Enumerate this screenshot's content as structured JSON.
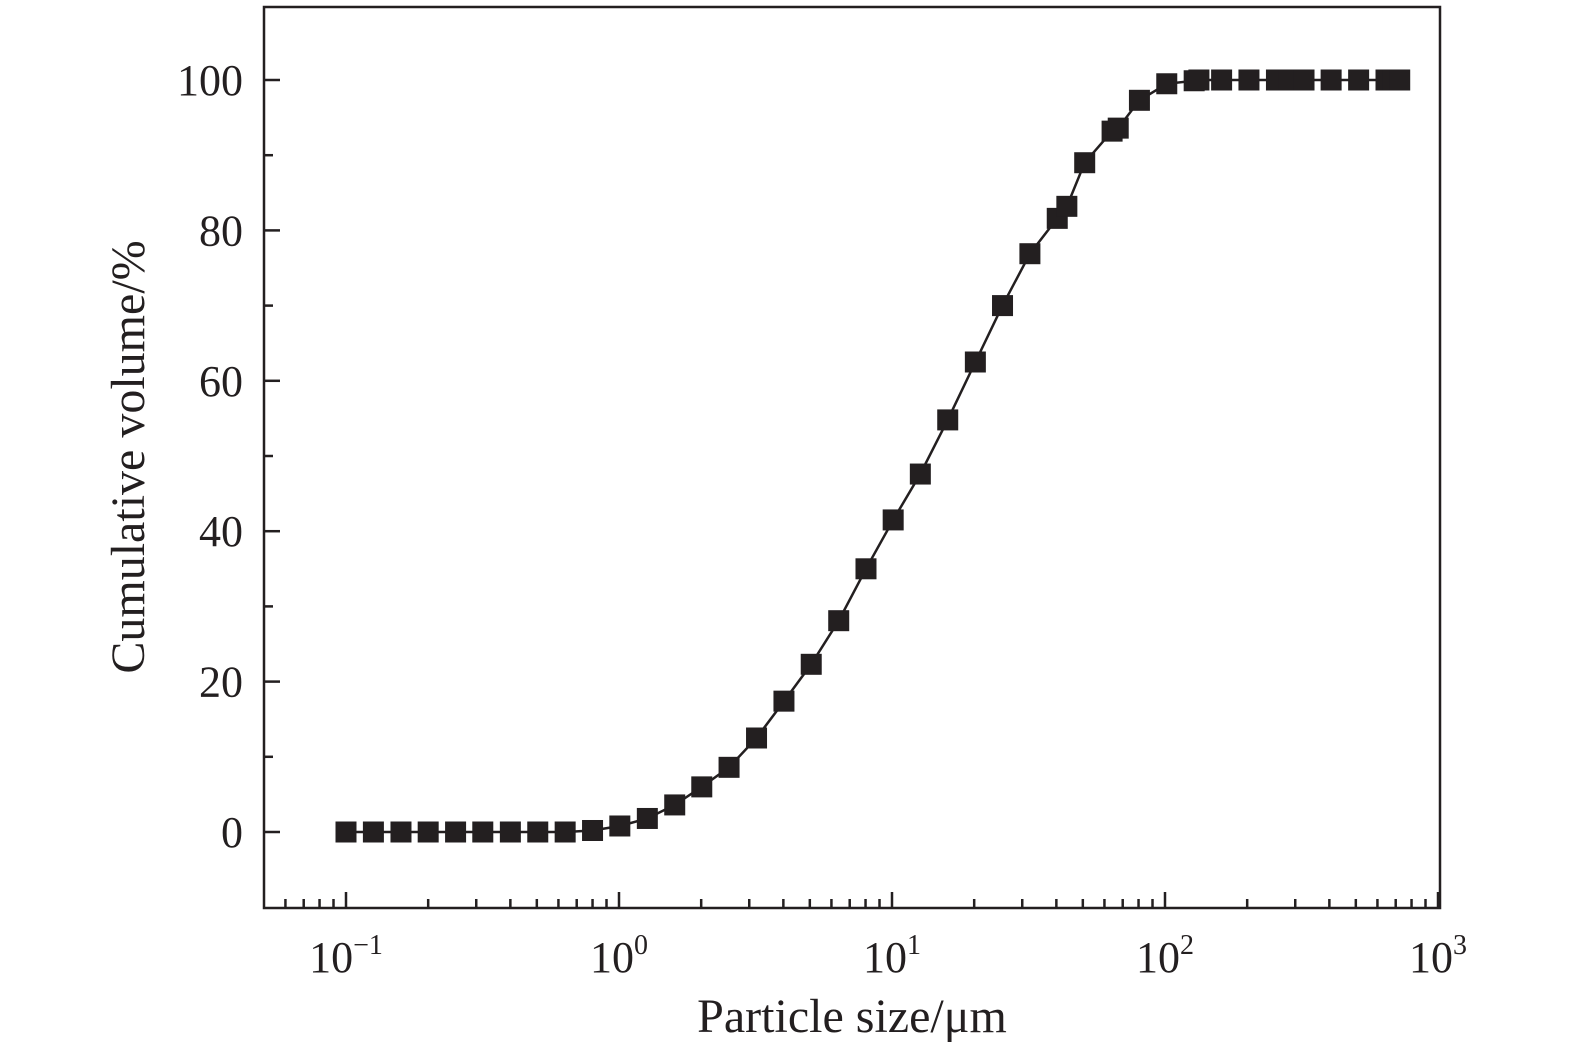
{
  "chart_data": {
    "type": "scatter",
    "title": "",
    "xlabel": "Particle size/μm",
    "ylabel": "Cumulative volume/%",
    "x_scale": "log",
    "xlim": [
      0.05,
      1000
    ],
    "ylim": [
      -10,
      110
    ],
    "x_ticks": [
      {
        "base": "10",
        "exp": "−1",
        "value": 0.1
      },
      {
        "base": "10",
        "exp": "0",
        "value": 1
      },
      {
        "base": "10",
        "exp": "1",
        "value": 10
      },
      {
        "base": "10",
        "exp": "2",
        "value": 100
      },
      {
        "base": "10",
        "exp": "3",
        "value": 1000
      }
    ],
    "y_ticks": [
      {
        "label": "0",
        "value": 0
      },
      {
        "label": "20",
        "value": 20
      },
      {
        "label": "40",
        "value": 40
      },
      {
        "label": "60",
        "value": 60
      },
      {
        "label": "80",
        "value": 80
      },
      {
        "label": "100",
        "value": 100
      }
    ],
    "grid": false,
    "marker_color": "#231f20",
    "series": [
      {
        "marker": "square",
        "line": true,
        "points": [
          [
            0.1,
            0
          ],
          [
            0.126,
            0
          ],
          [
            0.159,
            0
          ],
          [
            0.2,
            0
          ],
          [
            0.252,
            0
          ],
          [
            0.317,
            0
          ],
          [
            0.4,
            0
          ],
          [
            0.504,
            0
          ],
          [
            0.635,
            0
          ],
          [
            0.8,
            0.2
          ],
          [
            1.007,
            0.8
          ],
          [
            1.27,
            1.8
          ],
          [
            1.6,
            3.6
          ],
          [
            2.01,
            6
          ],
          [
            2.53,
            8.6
          ],
          [
            3.19,
            12.5
          ],
          [
            4.02,
            17.4
          ],
          [
            5.06,
            22.3
          ],
          [
            6.38,
            28.1
          ],
          [
            8.03,
            35
          ],
          [
            10.1,
            41.5
          ],
          [
            12.7,
            47.6
          ],
          [
            16.0,
            54.8
          ],
          [
            20.2,
            62.5
          ],
          [
            25.4,
            70
          ],
          [
            32.0,
            76.9
          ],
          [
            40.3,
            81.6
          ],
          [
            43.7,
            83.2
          ],
          [
            50.8,
            89
          ],
          [
            64.0,
            93.2
          ],
          [
            67.4,
            93.6
          ],
          [
            80.6,
            97.3
          ],
          [
            101.5,
            99.5
          ],
          [
            127.9,
            99.9
          ],
          [
            133.1,
            100
          ],
          [
            161.2,
            100
          ],
          [
            203,
            100
          ],
          [
            256,
            100
          ],
          [
            285,
            100
          ],
          [
            323,
            100
          ],
          [
            406,
            100
          ],
          [
            512,
            100
          ],
          [
            645,
            100
          ],
          [
            683,
            100
          ],
          [
            724,
            100
          ]
        ]
      }
    ]
  }
}
